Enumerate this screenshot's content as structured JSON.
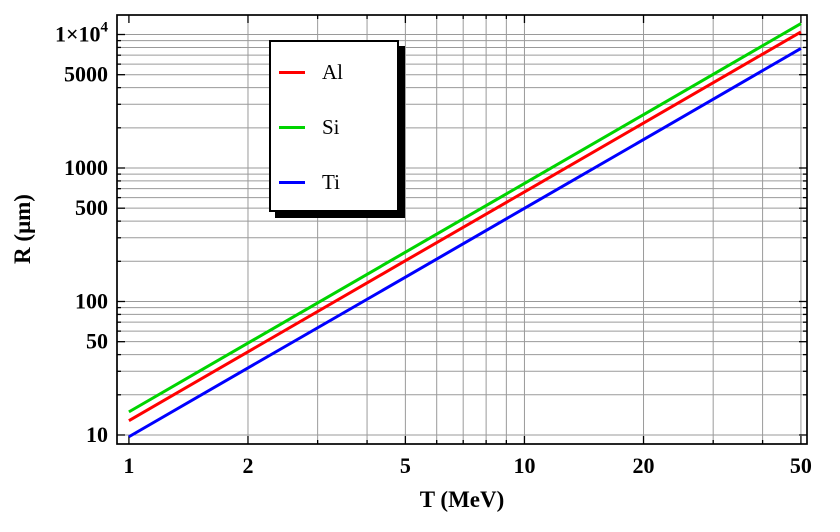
{
  "figure": {
    "background": "#ffffff",
    "frame_color": "#000000",
    "grid_color": "#9a9a9a",
    "tick_color": "#000000"
  },
  "chart_data": {
    "type": "line",
    "x_scale": "log",
    "y_scale": "log",
    "xlabel": "T (MeV)",
    "ylabel": "R (μm)",
    "xlim": [
      0.933,
      51.8
    ],
    "ylim": [
      8.56,
      14000
    ],
    "grid": true,
    "legend_position": "upper-left-inset",
    "x": [
      1,
      2,
      5,
      10,
      20,
      50
    ],
    "series": [
      {
        "name": "Al",
        "color": "#ff0000",
        "values": [
          12.8,
          42,
          202,
          662,
          2170,
          10450
        ]
      },
      {
        "name": "Si",
        "color": "#00d400",
        "values": [
          14.9,
          48.8,
          234,
          766,
          2510,
          12080
        ]
      },
      {
        "name": "Ti",
        "color": "#0000ff",
        "values": [
          9.7,
          31.8,
          152,
          499,
          1632,
          7870
        ]
      }
    ],
    "x_ticks_major": [
      1,
      2,
      5,
      10,
      20,
      50
    ],
    "x_tick_labels": [
      "1",
      "2",
      "5",
      "10",
      "20",
      "50"
    ],
    "x_ticks_minor": [
      3,
      4,
      6,
      7,
      8,
      9,
      30,
      40
    ],
    "y_ticks_major": [
      10,
      50,
      100,
      500,
      1000,
      5000,
      10000
    ],
    "y_tick_labels": [
      "10",
      "50",
      "100",
      "500",
      "1000",
      "5000",
      "1×10^4"
    ],
    "y_ticks_minor": [
      20,
      30,
      40,
      60,
      70,
      80,
      90,
      200,
      300,
      400,
      600,
      700,
      800,
      900,
      2000,
      3000,
      4000,
      6000,
      7000,
      8000,
      9000
    ],
    "x_grid": [
      2,
      3,
      4,
      5,
      6,
      7,
      8,
      9,
      10,
      20,
      30,
      40,
      50
    ],
    "y_grid": [
      10,
      20,
      30,
      40,
      50,
      60,
      70,
      80,
      90,
      100,
      200,
      300,
      400,
      500,
      600,
      700,
      800,
      900,
      1000,
      2000,
      3000,
      4000,
      5000,
      6000,
      7000,
      8000,
      9000,
      10000
    ]
  }
}
